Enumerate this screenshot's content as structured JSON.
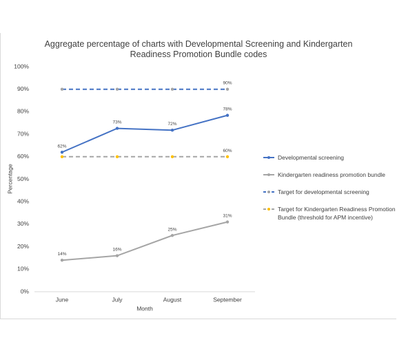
{
  "chart_data": {
    "type": "line",
    "title": "Aggregate percentage of charts with Developmental Screening and Kindergarten Readiness Promotion Bundle codes",
    "x_label": "Month",
    "y_label": "Percentage",
    "categories": [
      "June",
      "July",
      "August",
      "September"
    ],
    "ylim": [
      0,
      100
    ],
    "yticks": [
      {
        "value": 0,
        "label": "0%"
      },
      {
        "value": 10,
        "label": "10%"
      },
      {
        "value": 20,
        "label": "20%"
      },
      {
        "value": 30,
        "label": "30%"
      },
      {
        "value": 40,
        "label": "40%"
      },
      {
        "value": 50,
        "label": "50%"
      },
      {
        "value": 60,
        "label": "60%"
      },
      {
        "value": 70,
        "label": "70%"
      },
      {
        "value": 80,
        "label": "80%"
      },
      {
        "value": 90,
        "label": "90%"
      },
      {
        "value": 100,
        "label": "100%"
      }
    ],
    "grid": false,
    "legend": "right",
    "series": [
      {
        "name": "Developmental screening",
        "color": "#4472c4",
        "marker_color": "#4472c4",
        "dashed": false,
        "values": [
          62,
          72.6,
          71.8,
          78.4
        ],
        "value_labels": [
          "62%",
          "73%",
          "72%",
          "78%"
        ]
      },
      {
        "name": "Kindergarten readiness promotion bundle",
        "color": "#a5a5a5",
        "marker_color": "#a5a5a5",
        "dashed": false,
        "values": [
          14,
          16,
          25,
          31
        ],
        "value_labels": [
          "14%",
          "16%",
          "25%",
          "31%"
        ]
      },
      {
        "name": "Target for developmental screening",
        "color": "#4472c4",
        "marker_color": "#a5a5a5",
        "dashed": true,
        "values": [
          90,
          90,
          90,
          90
        ],
        "value_labels": [
          null,
          null,
          null,
          "90%"
        ]
      },
      {
        "name": "Target for Kindergarten Readiness Promotion Bundle (threshold for APM incentive)",
        "color": "#a5a5a5",
        "marker_color": "#ffc000",
        "dashed": true,
        "values": [
          60,
          60,
          60,
          60
        ],
        "value_labels": [
          null,
          null,
          null,
          "60%"
        ]
      }
    ]
  }
}
